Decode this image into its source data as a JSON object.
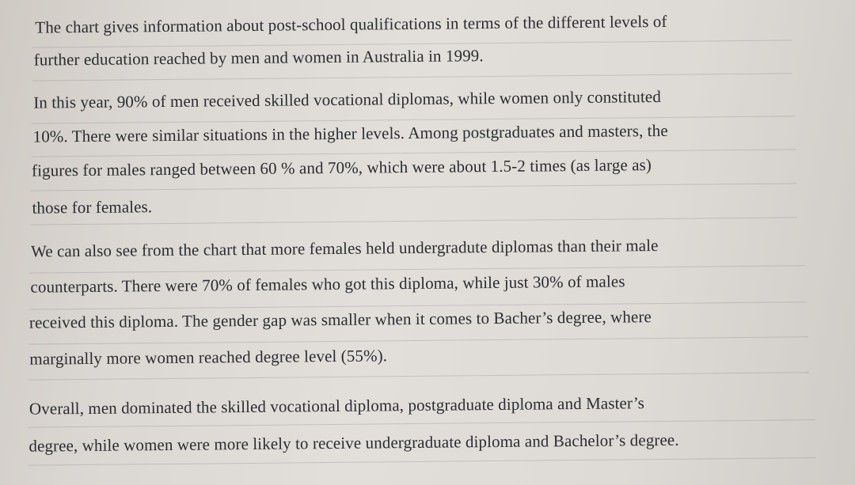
{
  "paragraphs": [
    {
      "lines": [
        "The chart gives information about post-school qualifications in terms of the different levels of",
        "further education reached by men and women in Australia in 1999."
      ]
    },
    {
      "lines": [
        "In this year, 90% of men received skilled vocational diplomas, while women only constituted",
        "10%. There were similar situations in the higher levels. Among postgraduates and masters, the",
        "figures for males ranged between 60 % and 70%, which were about 1.5-2 times (as large as)",
        "those for females."
      ]
    },
    {
      "lines": [
        "We can also see from the chart that more females held undergradute diplomas than their male",
        "counterparts. There were 70% of females who got this diploma, while just 30% of males",
        "received this diploma. The gender gap was smaller when it comes to Bacher’s degree, where",
        "marginally more women reached degree level (55%)."
      ]
    },
    {
      "lines": [
        "Overall, men dominated the skilled vocational diploma, postgraduate diploma and Master’s",
        "degree, while women were more likely to receive undergraduate diploma and Bachelor’s degree."
      ]
    }
  ]
}
